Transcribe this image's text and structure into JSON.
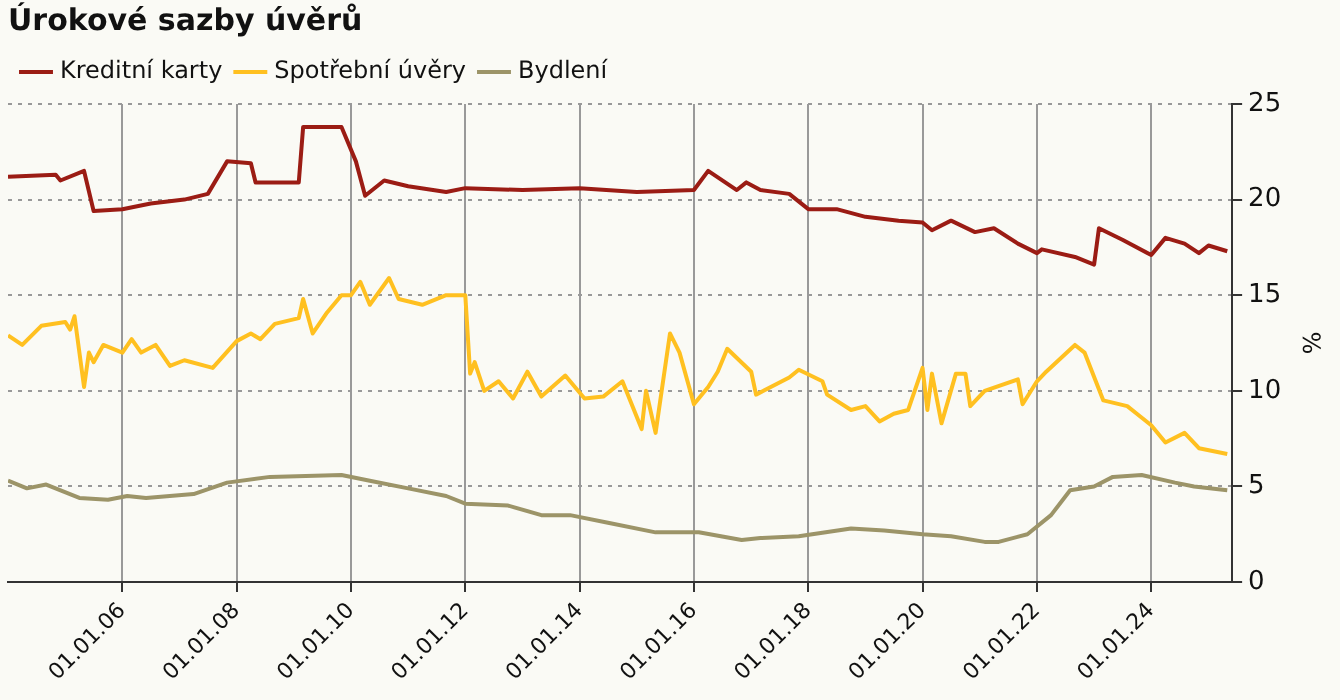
{
  "chart_data": {
    "type": "line",
    "title": "Úrokové sazby úvěrů",
    "ylabel": "%",
    "legend": "top left",
    "grid": true,
    "marker": "none",
    "line_style": "solid",
    "xlim": [
      "2004-01",
      "2025-06"
    ],
    "xticks": [
      {
        "value": "2006-01-01",
        "label": "01.01.06"
      },
      {
        "value": "2008-01-01",
        "label": "01.01.08"
      },
      {
        "value": "2010-01-01",
        "label": "01.01.10"
      },
      {
        "value": "2012-01-01",
        "label": "01.01.12"
      },
      {
        "value": "2014-01-01",
        "label": "01.01.14"
      },
      {
        "value": "2016-01-01",
        "label": "01.01.16"
      },
      {
        "value": "2018-01-01",
        "label": "01.01.18"
      },
      {
        "value": "2020-01-01",
        "label": "01.01.20"
      },
      {
        "value": "2022-01-01",
        "label": "01.01.22"
      },
      {
        "value": "2024-01-01",
        "label": "01.01.24"
      }
    ],
    "ylim": [
      0,
      25
    ],
    "yticks": [
      0,
      5,
      10,
      15,
      20,
      25
    ],
    "series": [
      {
        "name": "Kreditní karty",
        "color": "#9b1c14",
        "x": [
          "2004-01",
          "2004-11",
          "2004-12",
          "2005-05",
          "2005-07",
          "2006-01",
          "2006-07",
          "2007-02",
          "2007-07",
          "2007-11",
          "2008-04",
          "2008-05",
          "2009-02",
          "2009-03",
          "2009-11",
          "2010-02",
          "2010-04",
          "2010-08",
          "2011-01",
          "2011-09",
          "2012-01",
          "2013-01",
          "2014-01",
          "2015-01",
          "2016-01",
          "2016-04",
          "2016-10",
          "2016-12",
          "2017-03",
          "2017-09",
          "2018-01",
          "2018-07",
          "2019-01",
          "2019-08",
          "2020-01",
          "2020-03",
          "2020-07",
          "2020-12",
          "2021-04",
          "2021-09",
          "2022-01",
          "2022-02",
          "2022-09",
          "2023-01",
          "2023-02",
          "2023-07",
          "2024-01",
          "2024-04",
          "2024-08",
          "2024-11",
          "2025-01",
          "2025-05"
        ],
        "values": [
          21.2,
          21.3,
          21.0,
          21.5,
          19.4,
          19.5,
          19.8,
          20.0,
          20.3,
          22.0,
          21.9,
          20.9,
          20.9,
          23.8,
          23.8,
          22.0,
          20.2,
          21.0,
          20.7,
          20.4,
          20.6,
          20.5,
          20.6,
          20.4,
          20.5,
          21.5,
          20.5,
          20.9,
          20.5,
          20.3,
          19.5,
          19.5,
          19.1,
          18.9,
          18.8,
          18.4,
          18.9,
          18.3,
          18.5,
          17.7,
          17.2,
          17.4,
          17.0,
          16.6,
          18.5,
          17.9,
          17.1,
          18.0,
          17.7,
          17.2,
          17.6,
          17.3
        ]
      },
      {
        "name": "Spotřební úvěry",
        "color": "#ffc020",
        "x": [
          "2004-01",
          "2004-04",
          "2004-08",
          "2005-01",
          "2005-02",
          "2005-03",
          "2005-05",
          "2005-06",
          "2005-07",
          "2005-09",
          "2006-01",
          "2006-03",
          "2006-05",
          "2006-08",
          "2006-11",
          "2007-02",
          "2007-08",
          "2008-01",
          "2008-04",
          "2008-06",
          "2008-09",
          "2009-02",
          "2009-03",
          "2009-05",
          "2009-08",
          "2009-11",
          "2010-01",
          "2010-03",
          "2010-05",
          "2010-09",
          "2010-11",
          "2011-04",
          "2011-09",
          "2012-01",
          "2012-02",
          "2012-03",
          "2012-05",
          "2012-08",
          "2012-11",
          "2013-02",
          "2013-05",
          "2013-10",
          "2014-02",
          "2014-06",
          "2014-10",
          "2015-02",
          "2015-03",
          "2015-05",
          "2015-08",
          "2015-10",
          "2016-01",
          "2016-04",
          "2016-06",
          "2016-08",
          "2017-01",
          "2017-02",
          "2017-09",
          "2017-11",
          "2018-04",
          "2018-05",
          "2018-10",
          "2019-01",
          "2019-04",
          "2019-07",
          "2019-10",
          "2020-01",
          "2020-02",
          "2020-03",
          "2020-05",
          "2020-08",
          "2020-10",
          "2020-11",
          "2021-02",
          "2021-09",
          "2021-10",
          "2022-01",
          "2022-03",
          "2022-09",
          "2022-11",
          "2023-03",
          "2023-08",
          "2023-10",
          "2024-01",
          "2024-04",
          "2024-08",
          "2024-11",
          "2025-05"
        ],
        "values": [
          12.9,
          12.4,
          13.4,
          13.6,
          13.2,
          13.9,
          10.2,
          12.0,
          11.5,
          12.4,
          12.0,
          12.7,
          12.0,
          12.4,
          11.3,
          11.6,
          11.2,
          12.6,
          13.0,
          12.7,
          13.5,
          13.8,
          14.8,
          13.0,
          14.1,
          15.0,
          15.0,
          15.7,
          14.5,
          15.9,
          14.8,
          14.5,
          15.0,
          15.0,
          10.9,
          11.5,
          10.0,
          10.5,
          9.6,
          11.0,
          9.7,
          10.8,
          9.6,
          9.7,
          10.5,
          8.0,
          10.0,
          7.8,
          13.0,
          12.0,
          9.3,
          10.2,
          11.0,
          12.2,
          11.0,
          9.8,
          10.7,
          11.1,
          10.5,
          9.8,
          9.0,
          9.2,
          8.4,
          8.8,
          9.0,
          11.2,
          9.0,
          10.9,
          8.3,
          10.9,
          10.9,
          9.2,
          10.0,
          10.6,
          9.3,
          10.5,
          11.0,
          12.4,
          12.0,
          9.5,
          9.2,
          8.8,
          8.2,
          7.3,
          7.8,
          7.0,
          6.7
        ]
      },
      {
        "name": "Bydlení",
        "color": "#9c9468",
        "x": [
          "2004-01",
          "2004-05",
          "2004-09",
          "2005-04",
          "2005-10",
          "2006-02",
          "2006-06",
          "2007-04",
          "2007-11",
          "2008-08",
          "2009-11",
          "2010-05",
          "2011-01",
          "2011-09",
          "2012-01",
          "2012-10",
          "2013-05",
          "2013-11",
          "2014-07",
          "2015-05",
          "2016-02",
          "2016-11",
          "2017-03",
          "2017-11",
          "2018-10",
          "2019-05",
          "2020-01",
          "2020-07",
          "2021-02",
          "2021-05",
          "2021-11",
          "2022-04",
          "2022-08",
          "2023-01",
          "2023-05",
          "2023-11",
          "2024-06",
          "2024-10",
          "2025-05"
        ],
        "values": [
          5.3,
          4.9,
          5.1,
          4.4,
          4.3,
          4.5,
          4.4,
          4.6,
          5.2,
          5.5,
          5.6,
          5.3,
          4.9,
          4.5,
          4.1,
          4.0,
          3.5,
          3.5,
          3.1,
          2.6,
          2.6,
          2.2,
          2.3,
          2.4,
          2.8,
          2.7,
          2.5,
          2.4,
          2.1,
          2.1,
          2.5,
          3.5,
          4.8,
          5.0,
          5.5,
          5.6,
          5.2,
          5.0,
          4.8
        ]
      }
    ]
  }
}
